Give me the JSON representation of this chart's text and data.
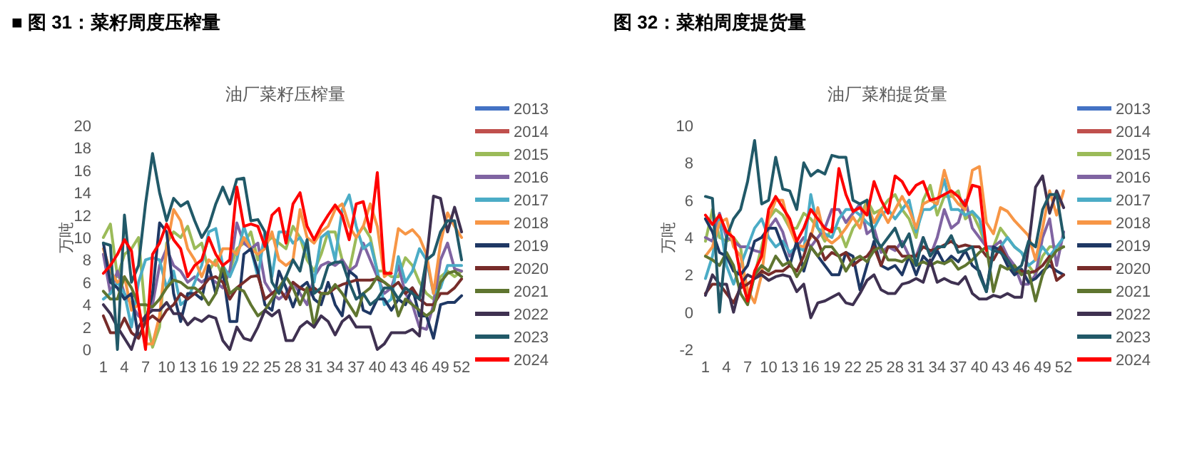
{
  "chart_data": [
    {
      "type": "line",
      "title": "■ 图 31：菜籽周度压榨量",
      "subtitle": "油厂菜籽压榨量",
      "ylabel": "万吨",
      "legend": "right",
      "ylim": [
        0,
        20
      ],
      "yticks": [
        0,
        2,
        4,
        6,
        8,
        10,
        12,
        14,
        16,
        18,
        20
      ],
      "categories": [
        "1",
        null,
        null,
        "4",
        null,
        null,
        "7",
        null,
        null,
        "10",
        null,
        null,
        "13",
        null,
        null,
        "16",
        null,
        null,
        "19",
        null,
        null,
        "22",
        null,
        null,
        "25",
        null,
        null,
        "28",
        null,
        null,
        "31",
        null,
        null,
        "34",
        null,
        null,
        "37",
        null,
        null,
        "40",
        null,
        null,
        "43",
        null,
        null,
        "46",
        null,
        null,
        "49",
        null,
        null,
        "52"
      ],
      "series": [
        {
          "name": "2013",
          "color": "#4472c4",
          "values": [
            null,
            null,
            null,
            null,
            null,
            null,
            null,
            null,
            null,
            null,
            null,
            null,
            null,
            null,
            null,
            null,
            null,
            null,
            null,
            null,
            null,
            null,
            null,
            null,
            null,
            null,
            null,
            null,
            null,
            null,
            null,
            null,
            null,
            null,
            null,
            null,
            null,
            null,
            null,
            null,
            null,
            null,
            null,
            null,
            null,
            null,
            null,
            null,
            null,
            null,
            null,
            null
          ]
        },
        {
          "name": "2014",
          "color": "#c0504d",
          "values": [
            null,
            null,
            null,
            null,
            null,
            null,
            null,
            null,
            null,
            null,
            null,
            null,
            null,
            null,
            null,
            null,
            null,
            null,
            null,
            null,
            null,
            null,
            null,
            null,
            null,
            null,
            null,
            null,
            null,
            null,
            null,
            null,
            null,
            null,
            null,
            null,
            null,
            null,
            null,
            null,
            null,
            null,
            null,
            null,
            null,
            null,
            null,
            null,
            null,
            null,
            null,
            null
          ]
        },
        {
          "name": "2015",
          "color": "#9bbb59",
          "values": [
            10,
            11.2,
            6.5,
            8.5,
            9,
            10,
            3,
            0.2,
            2,
            9.5,
            10.5,
            10,
            11,
            9,
            9.5,
            7,
            8,
            6.5,
            7,
            9,
            9.5,
            10.5,
            8,
            9.5,
            10,
            9.5,
            9,
            11,
            10,
            8,
            7,
            8.5,
            10.5,
            10.5,
            8,
            7,
            10,
            11,
            10,
            7,
            7,
            6.5,
            6.5,
            8.2,
            7.5,
            6,
            5,
            4.5,
            6.5,
            7,
            6.5,
            7
          ]
        },
        {
          "name": "2016",
          "color": "#8064a2",
          "values": [
            8.5,
            5,
            7,
            5,
            4,
            3,
            2.5,
            4,
            7.5,
            9,
            7.5,
            7,
            6,
            6.5,
            6,
            6.5,
            6,
            5.5,
            7,
            11.3,
            9.5,
            9,
            9.5,
            6,
            5,
            4.5,
            5,
            6,
            5,
            4,
            6.5,
            7.5,
            7.8,
            7.5,
            8,
            7,
            7.5,
            9.5,
            8,
            6.5,
            5,
            5.5,
            7.5,
            5,
            4,
            2,
            1.8,
            4,
            8,
            9.5,
            7.2,
            7
          ]
        },
        {
          "name": "2017",
          "color": "#4bacc6",
          "values": [
            4.5,
            5,
            6,
            5,
            2,
            6,
            8,
            8.2,
            8,
            5.5,
            7,
            4,
            4.5,
            6,
            7.5,
            10.5,
            10.8,
            7.5,
            6.5,
            8,
            11,
            9,
            6.5,
            10.5,
            6.5,
            10.5,
            10.5,
            9.5,
            10,
            9,
            6,
            10,
            10.5,
            8,
            12.5,
            13.8,
            11,
            9,
            9.5,
            7,
            4,
            4.5,
            8.3,
            6,
            7,
            9,
            8,
            5,
            5.5,
            7.5,
            7.5,
            7.5
          ]
        },
        {
          "name": "2018",
          "color": "#f79646",
          "values": [
            9,
            7,
            6,
            6.5,
            3.5,
            4,
            0.5,
            0.5,
            3,
            9,
            12.5,
            11.5,
            9,
            8,
            6.5,
            8,
            7.5,
            9,
            9,
            8.5,
            10,
            9,
            8.5,
            9,
            10.5,
            8,
            7.5,
            8,
            12.5,
            10,
            9.5,
            10.5,
            11,
            12.5,
            13,
            11,
            10,
            11,
            13,
            11,
            6.5,
            7,
            10.8,
            10.3,
            10.7,
            10,
            8.5,
            5,
            9.5,
            12.2,
            11,
            10
          ]
        },
        {
          "name": "2019",
          "color": "#1f3864",
          "values": [
            9.5,
            6,
            5.5,
            4.5,
            5,
            1,
            2.5,
            5,
            11.3,
            10.5,
            5,
            2.5,
            5,
            5,
            4.5,
            7.5,
            5,
            7,
            2.5,
            2.5,
            8.5,
            9,
            7,
            4,
            3.5,
            7,
            5.5,
            3.8,
            5.5,
            6,
            4.5,
            4,
            6,
            4,
            3,
            7,
            6.5,
            3.5,
            3.2,
            4.5,
            4.5,
            3.5,
            4.5,
            4,
            5.5,
            3,
            3,
            1,
            4,
            4.2,
            4.2,
            4.8
          ]
        },
        {
          "name": "2020",
          "color": "#772c2a",
          "values": [
            3,
            1.5,
            1.5,
            2.8,
            1.5,
            1,
            2.5,
            3,
            2.5,
            3.5,
            4,
            5,
            4.5,
            5,
            5.5,
            6.3,
            6.5,
            6,
            4.5,
            5.5,
            6,
            6.5,
            6.6,
            4.5,
            5,
            5.5,
            4.5,
            6,
            5.5,
            5.2,
            5.5,
            5,
            5,
            5.5,
            5.8,
            6,
            6.2,
            6.2,
            6.2,
            6.3,
            6,
            5.5,
            6,
            5,
            5.5,
            4.5,
            4,
            4,
            5,
            5,
            5.5,
            6.3
          ]
        },
        {
          "name": "2021",
          "color": "#5f7530",
          "values": [
            5.2,
            4.5,
            4.5,
            6.5,
            5.5,
            4,
            4,
            3.8,
            4.5,
            5.5,
            6.2,
            6,
            5.5,
            5.5,
            5,
            4,
            5,
            7.5,
            5,
            5.5,
            5.2,
            4,
            3,
            3.5,
            4.5,
            5.5,
            6.5,
            5.5,
            4,
            5.5,
            2,
            5,
            5,
            5.8,
            5,
            4,
            3,
            5,
            5.5,
            6.5,
            6,
            5.5,
            3,
            4.5,
            4,
            3.5,
            3,
            3.5,
            6,
            6.8,
            7,
            6.5
          ]
        },
        {
          "name": "2022",
          "color": "#3f3151",
          "values": [
            4,
            3.2,
            2,
            1,
            0,
            2,
            3,
            3.5,
            3.5,
            4.2,
            3.2,
            3.2,
            2.2,
            2.8,
            2.5,
            3,
            2.8,
            0.8,
            0,
            2,
            1,
            0.8,
            2,
            3.5,
            3,
            3.5,
            0.8,
            0.8,
            2,
            2.5,
            2,
            3,
            2.5,
            1.3,
            2.5,
            3,
            2,
            2,
            2,
            0,
            0.5,
            1.5,
            1.5,
            1.5,
            1.8,
            1.2,
            8,
            13.7,
            13.5,
            10.5,
            12.7,
            10.5
          ]
        },
        {
          "name": "2023",
          "color": "#215968",
          "values": [
            9.5,
            9.3,
            0,
            12,
            6,
            7.5,
            13,
            17.5,
            14,
            11.5,
            13.5,
            12.8,
            13.2,
            11.5,
            10,
            11,
            13,
            14.5,
            13,
            15.2,
            15.3,
            11.5,
            11.6,
            10.5,
            6,
            5,
            6.5,
            8,
            7,
            9.8,
            5,
            5.5,
            7.5,
            7.8,
            7.8,
            6,
            4.5,
            5,
            4,
            4.5,
            5.5,
            5.5,
            4.5,
            5.5,
            5,
            4.5,
            8,
            8.5,
            10.5,
            11.5,
            11.5,
            8
          ]
        },
        {
          "name": "2024",
          "color": "#ff0000",
          "values": [
            6.8,
            7.5,
            8.5,
            9.8,
            8.8,
            4,
            0,
            8.5,
            9.5,
            11.2,
            9.8,
            9,
            6.5,
            7.5,
            8,
            10,
            8.5,
            7.5,
            8,
            14.5,
            11,
            11.2,
            11,
            9.2,
            12,
            12.6,
            9.5,
            13,
            14,
            11,
            9.8,
            11,
            12,
            12.9,
            12,
            9.8,
            13,
            13.2,
            10.5,
            15.8,
            6.8,
            6.8,
            null,
            null,
            null,
            null,
            null,
            null,
            null,
            null,
            null,
            null
          ]
        }
      ]
    },
    {
      "type": "line",
      "title": "图 32：菜粕周度提货量",
      "subtitle": "油厂菜粕提货量",
      "ylabel": "万吨",
      "legend": "right",
      "ylim": [
        -2,
        10
      ],
      "yticks": [
        -2,
        0,
        2,
        4,
        6,
        8,
        10
      ],
      "categories": [
        "1",
        null,
        null,
        "4",
        null,
        null,
        "7",
        null,
        null,
        "10",
        null,
        null,
        "13",
        null,
        null,
        "16",
        null,
        null,
        "19",
        null,
        null,
        "22",
        null,
        null,
        "25",
        null,
        null,
        "28",
        null,
        null,
        "31",
        null,
        null,
        "34",
        null,
        null,
        "37",
        null,
        null,
        "40",
        null,
        null,
        "43",
        null,
        null,
        "46",
        null,
        null,
        "49",
        null,
        null,
        "52"
      ],
      "series": [
        {
          "name": "2013",
          "color": "#4472c4",
          "values": [
            null,
            null,
            null,
            null,
            null,
            null,
            null,
            null,
            null,
            null,
            null,
            null,
            null,
            null,
            null,
            null,
            null,
            null,
            null,
            null,
            null,
            null,
            null,
            null,
            null,
            null,
            null,
            null,
            null,
            null,
            null,
            null,
            null,
            null,
            null,
            null,
            null,
            null,
            null,
            null,
            null,
            null,
            null,
            null,
            null,
            null,
            null,
            null,
            null,
            null,
            null,
            null
          ]
        },
        {
          "name": "2014",
          "color": "#c0504d",
          "values": [
            null,
            null,
            null,
            null,
            null,
            null,
            null,
            null,
            null,
            null,
            null,
            null,
            null,
            null,
            null,
            null,
            null,
            null,
            null,
            null,
            null,
            null,
            null,
            null,
            null,
            null,
            null,
            null,
            null,
            null,
            null,
            null,
            null,
            null,
            null,
            null,
            null,
            null,
            null,
            null,
            null,
            null,
            null,
            null,
            null,
            null,
            null,
            null,
            null,
            null,
            null,
            null
          ]
        },
        {
          "name": "2015",
          "color": "#9bbb59",
          "values": [
            3.8,
            5.5,
            4,
            3.8,
            4,
            3.5,
            0.5,
            2,
            3.5,
            5,
            5.5,
            5.2,
            4.5,
            4.5,
            5.3,
            5,
            4.5,
            3.8,
            4.5,
            4.5,
            3.5,
            4.5,
            5,
            6,
            5.3,
            5.5,
            6,
            6.3,
            5.5,
            5,
            4,
            6,
            6.8,
            5.2,
            6.2,
            6.2,
            6.5,
            5,
            5.3,
            4.5,
            3.5,
            3.5,
            4.5,
            4,
            3.5,
            3.2,
            2.5,
            2,
            3,
            3.5,
            3.5,
            3.5
          ]
        },
        {
          "name": "2016",
          "color": "#8064a2",
          "values": [
            4,
            3.8,
            5.3,
            4,
            3.8,
            3.5,
            3.5,
            3.3,
            3.2,
            4.5,
            5,
            4.3,
            3,
            3.5,
            4,
            3.5,
            4,
            4.5,
            5.5,
            5.5,
            4.8,
            5.3,
            5.8,
            4.2,
            4.5,
            3.2,
            3.5,
            3.3,
            3.8,
            3,
            3,
            4,
            3,
            4,
            5.5,
            4.5,
            4.8,
            6,
            4.5,
            4,
            3.5,
            3.5,
            3.8,
            3,
            2.5,
            1.5,
            1.5,
            2,
            4,
            5,
            2.5,
            4.3
          ]
        },
        {
          "name": "2017",
          "color": "#4bacc6",
          "values": [
            1.8,
            3,
            5,
            2.5,
            1.5,
            2.5,
            3.5,
            4.5,
            5,
            4,
            3.5,
            3.8,
            3.2,
            3.5,
            3.3,
            6.3,
            4.5,
            4.2,
            4,
            5,
            5.5,
            5.5,
            5.2,
            4.8,
            4.5,
            5.2,
            5.5,
            5,
            5.5,
            6,
            4.3,
            5.5,
            5.5,
            5.8,
            7.1,
            5.5,
            5.5,
            5.2,
            5.4,
            5,
            3.5,
            3.3,
            3.5,
            4,
            3.5,
            3.2,
            2.5,
            2.8,
            3.5,
            3,
            3.5,
            4
          ]
        },
        {
          "name": "2018",
          "color": "#f79646",
          "values": [
            3,
            3.5,
            4.8,
            5,
            3.5,
            3,
            1.2,
            0.5,
            2,
            5,
            6,
            6,
            4.5,
            3.6,
            3.5,
            4,
            5.6,
            4,
            3.7,
            4,
            4.5,
            5.1,
            4.5,
            5.8,
            4.8,
            5.5,
            4.8,
            5.5,
            6.2,
            5.5,
            4.5,
            5.8,
            6,
            5.8,
            7.6,
            6.3,
            5.8,
            5.5,
            7.6,
            7.8,
            4.8,
            4.2,
            5.6,
            5.4,
            4.9,
            4.5,
            4.1,
            2.8,
            4.5,
            6.5,
            5.2,
            6.5
          ]
        },
        {
          "name": "2019",
          "color": "#1f3864",
          "values": [
            5,
            4.3,
            3.2,
            3,
            2.2,
            2,
            2.5,
            3.8,
            4,
            4.5,
            4.5,
            3.5,
            2.5,
            3.8,
            2.2,
            3.5,
            3,
            2.5,
            2,
            2,
            3.2,
            3,
            1.2,
            2.5,
            3.8,
            2.5,
            2.3,
            2.5,
            2,
            3,
            2,
            3,
            2.6,
            3.3,
            2.6,
            3,
            2.7,
            3.3,
            2.5,
            2.2,
            1.1,
            3.5,
            3.3,
            2.5,
            2,
            2.3,
            1.6,
            1.8,
            2.2,
            2.5,
            2.2,
            2
          ]
        },
        {
          "name": "2020",
          "color": "#772c2a",
          "values": [
            1,
            1.5,
            1.5,
            1,
            0.5,
            1.3,
            1.5,
            1.8,
            2.2,
            2,
            2.2,
            2.2,
            2.5,
            2.2,
            3,
            4.2,
            3.8,
            2.8,
            3.2,
            3,
            3.2,
            2.5,
            2.8,
            3,
            3.5,
            2.5,
            3.5,
            3.5,
            3,
            3,
            3,
            3.5,
            3.3,
            3.4,
            3.6,
            3.8,
            3.5,
            3.6,
            3.5,
            3.5,
            3,
            2.8,
            3.5,
            2.8,
            2.2,
            2.2,
            2.1,
            2.2,
            2.5,
            3,
            1.7,
            2
          ]
        },
        {
          "name": "2021",
          "color": "#5f7530",
          "values": [
            3,
            2.8,
            2.5,
            3.2,
            2.5,
            1,
            0.4,
            2,
            2.5,
            2.2,
            3,
            2.5,
            2.7,
            1.9,
            2.5,
            3.5,
            3,
            3.5,
            3.5,
            3,
            2.2,
            2.8,
            3,
            2.7,
            3.3,
            3.5,
            2.8,
            2.8,
            2.7,
            3,
            2.5,
            2.7,
            2.5,
            2.7,
            2.6,
            2.8,
            2.3,
            2.5,
            2.8,
            3.2,
            3.5,
            1.1,
            2.5,
            2.3,
            2.5,
            2,
            2.2,
            0.6,
            2,
            2.8,
            3.3,
            3.5
          ]
        },
        {
          "name": "2022",
          "color": "#3f3151",
          "values": [
            0.9,
            2,
            1.5,
            1.5,
            0,
            1.5,
            2,
            1.8,
            2,
            1.7,
            1.9,
            2,
            1.9,
            1.1,
            1.5,
            -0.3,
            0.5,
            0.6,
            0.8,
            1,
            0.5,
            0.4,
            1,
            1.7,
            2,
            1.2,
            1,
            1,
            1.5,
            1.6,
            1.8,
            1.6,
            2.8,
            1.6,
            1.8,
            1.6,
            1.5,
            1.9,
            1,
            0.7,
            0.7,
            0.9,
            0.8,
            1,
            0.8,
            0.8,
            3.5,
            6.7,
            7.3,
            5.3,
            6.5,
            5.6
          ]
        },
        {
          "name": "2023",
          "color": "#215968",
          "values": [
            6.2,
            6.1,
            0,
            4,
            5,
            5.5,
            7,
            9.2,
            5.8,
            6,
            8.3,
            6.6,
            6.5,
            5.5,
            8,
            7.3,
            7.6,
            7.4,
            8.4,
            8.3,
            8.3,
            6,
            5.8,
            6,
            4,
            3.5,
            4,
            4.5,
            3.5,
            4.2,
            2.5,
            4,
            3,
            3.5,
            3.5,
            4.1,
            3.2,
            3.3,
            3.5,
            2,
            1.1,
            3.3,
            3.2,
            2.8,
            2.2,
            2.5,
            3.8,
            3.5,
            5.5,
            6.3,
            6.3,
            4
          ]
        },
        {
          "name": "2024",
          "color": "#ff0000",
          "values": [
            5.2,
            4.7,
            5.2,
            4.3,
            4,
            2,
            0.6,
            2.2,
            3,
            5.5,
            6.2,
            5.6,
            5,
            3.8,
            4.5,
            5.5,
            5,
            4.5,
            4.3,
            7.7,
            6.3,
            5.4,
            5.6,
            5.2,
            7,
            6,
            5.3,
            7.3,
            7,
            6.3,
            6.8,
            7,
            6,
            6.1,
            6.3,
            6.5,
            6.2,
            5.7,
            6.8,
            6.7,
            3.3,
            null,
            null,
            null,
            null,
            null,
            null,
            null,
            null,
            null,
            null,
            null
          ]
        }
      ]
    }
  ]
}
